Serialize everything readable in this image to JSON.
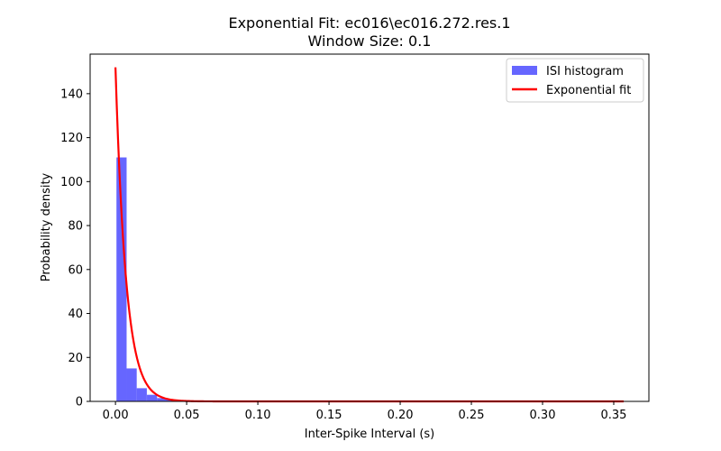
{
  "chart_data": {
    "type": "bar",
    "title": "Exponential Fit: ec016\\ec016.272.res.1",
    "subtitle": "Window Size: 0.1",
    "xlabel": "Inter-Spike Interval (s)",
    "ylabel": "Probability density",
    "xlim": [
      -0.0178,
      0.3747
    ],
    "ylim": [
      0,
      158
    ],
    "x_ticks": [
      0.0,
      0.05,
      0.1,
      0.15,
      0.2,
      0.25,
      0.3,
      0.35
    ],
    "x_tick_labels": [
      "0.00",
      "0.05",
      "0.10",
      "0.15",
      "0.20",
      "0.25",
      "0.30",
      "0.35"
    ],
    "y_ticks": [
      0,
      20,
      40,
      60,
      80,
      100,
      120,
      140
    ],
    "y_tick_labels": [
      "0",
      "20",
      "40",
      "60",
      "80",
      "100",
      "120",
      "140"
    ],
    "grid": false,
    "legend_position": "top-right",
    "histogram": {
      "name": "ISI histogram",
      "color": "#6666ff",
      "bin_width": 0.00713,
      "bin_starts": [
        0.0007,
        0.0078,
        0.0149,
        0.0221,
        0.0292,
        0.0363,
        0.0435,
        0.0506
      ],
      "values": [
        111,
        15,
        6,
        3,
        1.5,
        0.8,
        0.4,
        0.2
      ]
    },
    "fit": {
      "name": "Exponential fit",
      "color": "#ff0000",
      "amplitude": 152,
      "rate": 135,
      "x_range": [
        0.0,
        0.357
      ]
    }
  }
}
